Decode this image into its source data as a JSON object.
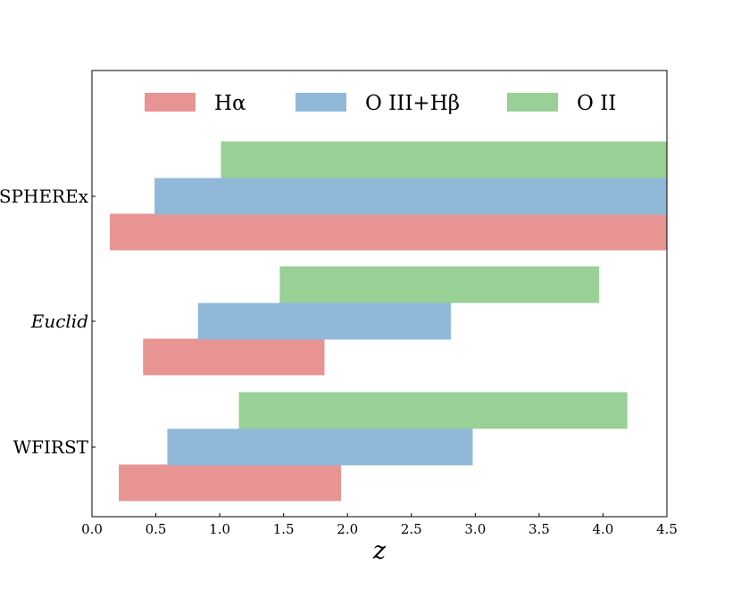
{
  "chart_data": {
    "type": "bar",
    "orientation": "horizontal-range",
    "xlabel": "z",
    "xlim": [
      0.0,
      4.5
    ],
    "xticks": [
      "0.0",
      "0.5",
      "1.0",
      "1.5",
      "2.0",
      "2.5",
      "3.0",
      "3.5",
      "4.0",
      "4.5"
    ],
    "xtick_values": [
      0.0,
      0.5,
      1.0,
      1.5,
      2.0,
      2.5,
      3.0,
      3.5,
      4.0,
      4.5
    ],
    "categories": [
      "WFIRST",
      "Euclid",
      "SPHEREx"
    ],
    "category_italic": [
      false,
      true,
      false
    ],
    "legend_placement": "top-center",
    "grid": false,
    "series": [
      {
        "name": "Hα",
        "color": "#e89493",
        "ranges": [
          [
            0.21,
            1.95
          ],
          [
            0.4,
            1.82
          ],
          [
            0.14,
            4.5
          ]
        ]
      },
      {
        "name": "O III+Hβ",
        "color": "#90b9d9",
        "ranges": [
          [
            0.59,
            2.98
          ],
          [
            0.83,
            2.81
          ],
          [
            0.49,
            4.5
          ]
        ]
      },
      {
        "name": "O II",
        "color": "#98d095",
        "ranges": [
          [
            1.15,
            4.19
          ],
          [
            1.47,
            3.97
          ],
          [
            1.01,
            4.5
          ]
        ]
      }
    ]
  }
}
